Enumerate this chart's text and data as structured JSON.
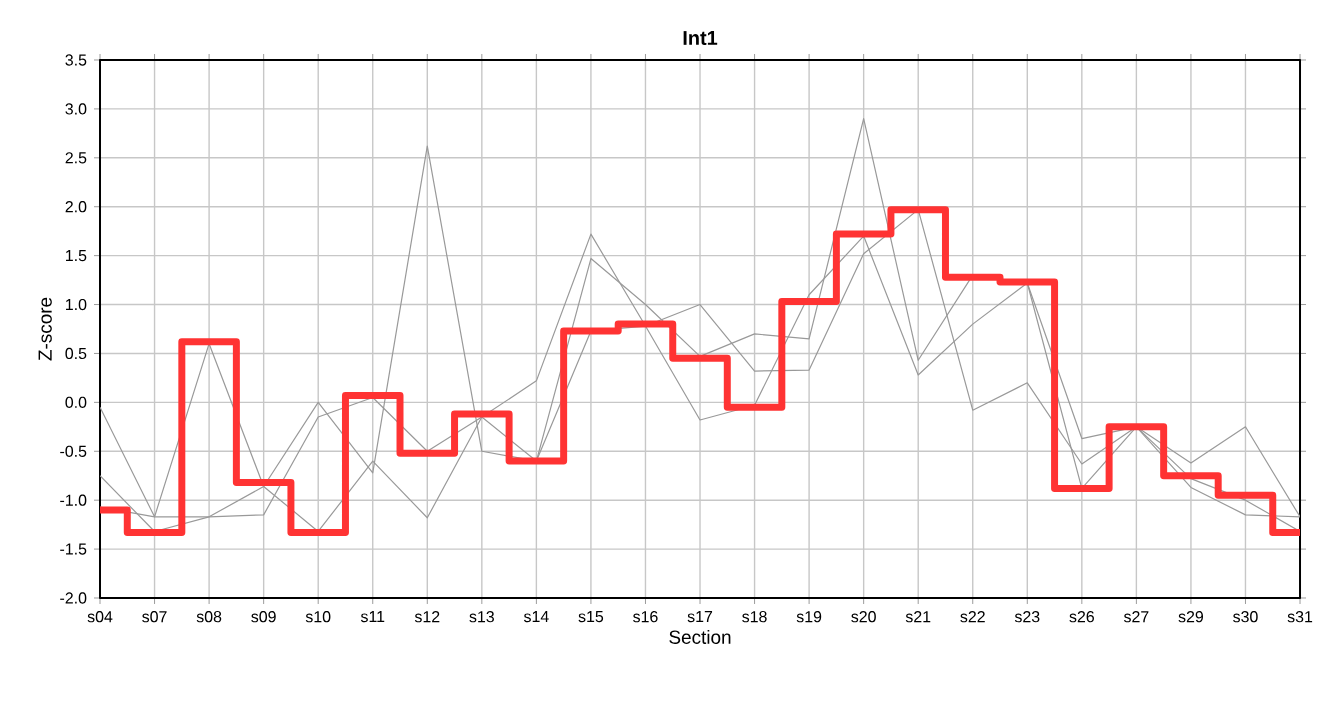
{
  "chart_data": {
    "type": "line",
    "title": "Int1",
    "xlabel": "Section",
    "ylabel": "Z-score",
    "categories": [
      "s04",
      "s07",
      "s08",
      "s09",
      "s10",
      "s11",
      "s12",
      "s13",
      "s14",
      "s15",
      "s16",
      "s17",
      "s18",
      "s19",
      "s20",
      "s21",
      "s22",
      "s23",
      "s26",
      "s27",
      "s29",
      "s30",
      "s31"
    ],
    "series": [
      {
        "color": "#999999",
        "values": [
          -0.05,
          -1.17,
          0.6,
          -0.86,
          0.0,
          -0.72,
          2.62,
          -0.5,
          -0.6,
          1.47,
          1.0,
          0.47,
          0.7,
          0.65,
          2.9,
          0.43,
          1.3,
          1.22,
          -0.37,
          -0.25,
          -0.62,
          -0.25,
          -1.17
        ]
      },
      {
        "color": "#999999",
        "values": [
          -0.75,
          -1.32,
          -1.17,
          -1.15,
          -0.15,
          0.05,
          -0.5,
          -0.15,
          0.22,
          1.72,
          0.78,
          1.0,
          0.32,
          0.33,
          1.52,
          1.97,
          -0.08,
          0.2,
          -0.63,
          -0.25,
          -0.78,
          -1.0,
          -1.32
        ]
      },
      {
        "color": "#999999",
        "values": [
          -1.07,
          -1.17,
          -1.17,
          -0.86,
          -1.32,
          -0.6,
          -1.18,
          -0.15,
          -0.6,
          0.73,
          0.78,
          -0.18,
          -0.03,
          1.1,
          1.7,
          0.28,
          0.8,
          1.22,
          -0.88,
          -0.25,
          -0.87,
          -1.15,
          -1.17
        ]
      },
      {
        "type": "step",
        "color": "#ff3333",
        "values": [
          -1.1,
          -1.33,
          0.62,
          -0.82,
          -1.33,
          0.07,
          -0.52,
          -0.12,
          -0.6,
          0.73,
          0.8,
          0.45,
          -0.05,
          1.03,
          1.72,
          1.97,
          1.28,
          1.23,
          -0.88,
          -0.25,
          -0.75,
          -0.95,
          -1.33
        ]
      }
    ],
    "ylim": [
      -2.0,
      3.5
    ],
    "yticks": [
      {
        "value": -2.0,
        "label": "-2.0"
      },
      -1.5,
      {
        "value": -1.0,
        "label": "-1.0"
      },
      -0.5,
      {
        "value": 0.0,
        "label": "0.0"
      },
      0.5,
      {
        "value": 1.0,
        "label": "1.0"
      },
      1.5,
      {
        "value": 2.0,
        "label": "2.0"
      },
      2.5,
      {
        "value": 3.0,
        "label": "3.0"
      },
      3.5
    ],
    "grid": true
  }
}
